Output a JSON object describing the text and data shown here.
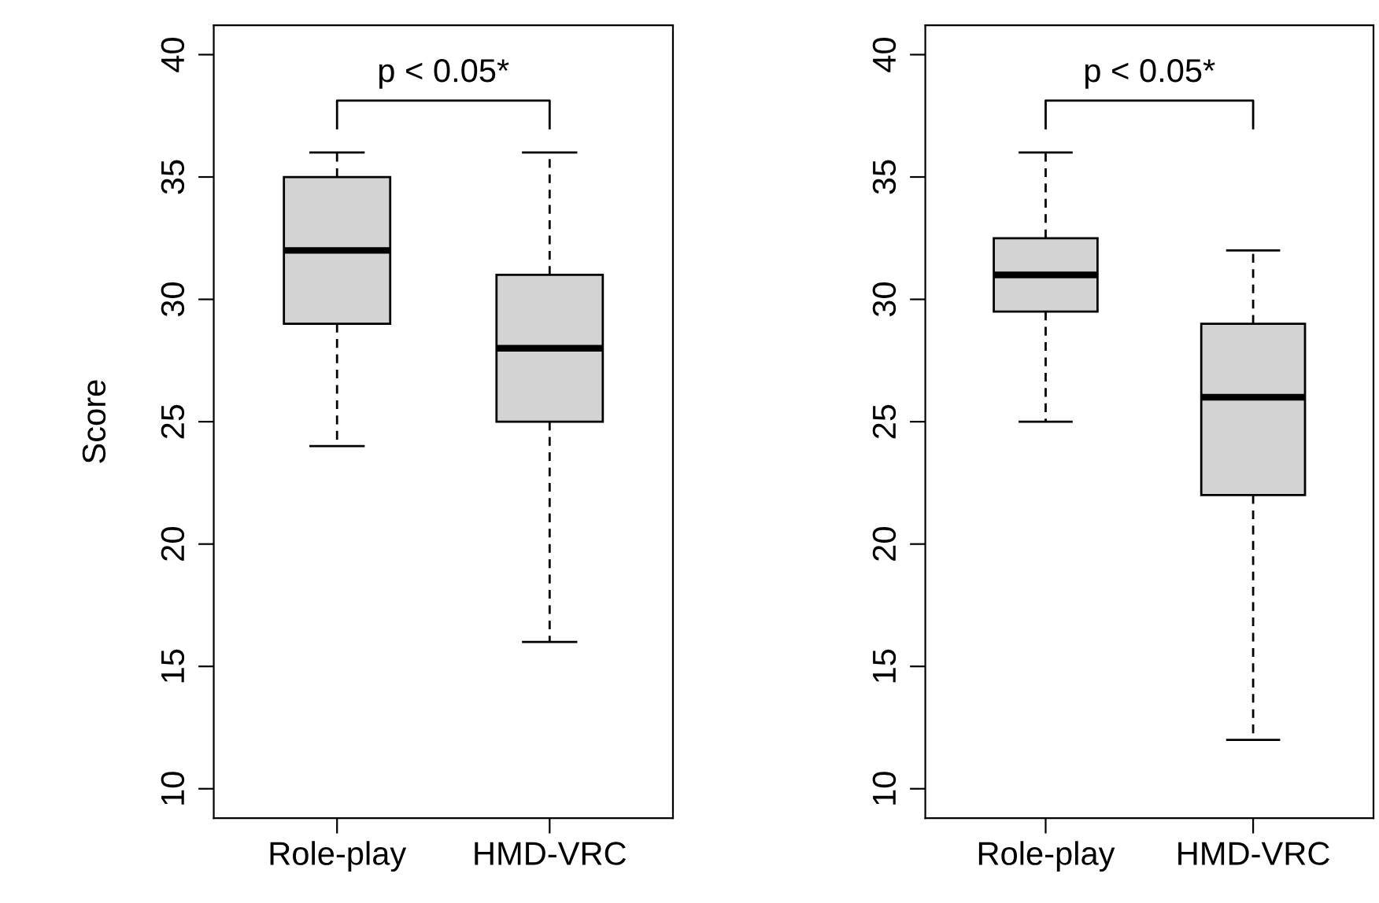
{
  "chart_data": [
    {
      "type": "box",
      "categories": [
        "Role-play",
        "HMD-VRC"
      ],
      "ylabel": "Score",
      "ylim": [
        8.8,
        41.2
      ],
      "yticks": [
        10,
        15,
        20,
        25,
        30,
        35,
        40
      ],
      "grid": false,
      "color": "#d3d3d3",
      "annotations": [
        "p < 0.05*"
      ],
      "boxes": [
        {
          "low": 24,
          "q1": 29,
          "median": 32,
          "q3": 35,
          "high": 36
        },
        {
          "low": 16,
          "q1": 25,
          "median": 28,
          "q3": 31,
          "high": 36
        }
      ]
    },
    {
      "type": "box",
      "categories": [
        "Role-play",
        "HMD-VRC"
      ],
      "ylim": [
        8.8,
        41.2
      ],
      "yticks": [
        10,
        15,
        20,
        25,
        30,
        35,
        40
      ],
      "grid": false,
      "color": "#d3d3d3",
      "annotations": [
        "p < 0.05*"
      ],
      "boxes": [
        {
          "low": 25,
          "q1": 29.5,
          "median": 31,
          "q3": 32.5,
          "high": 36
        },
        {
          "low": 12,
          "q1": 22,
          "median": 26,
          "q3": 29,
          "high": 32
        }
      ]
    }
  ]
}
